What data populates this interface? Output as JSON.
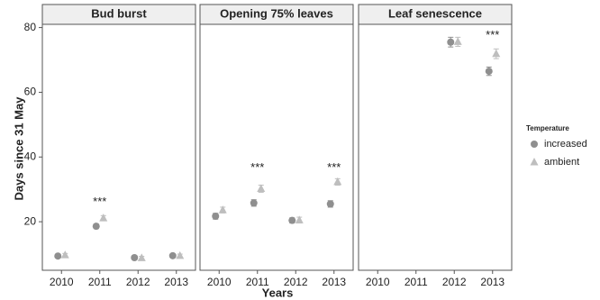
{
  "chart_data": {
    "type": "point",
    "y_label": "Days since 31 May",
    "x_label": "Years",
    "legend_title": "Temperature",
    "categories": [
      "2010",
      "2011",
      "2012",
      "2013"
    ],
    "ylim": [
      5,
      81
    ],
    "yticks": [
      20,
      40,
      60,
      80
    ],
    "grid": false,
    "series": [
      {
        "name": "increased",
        "color": "#8f8f8f",
        "marker": "circle"
      },
      {
        "name": "ambient",
        "color": "#bebebe",
        "marker": "triangle"
      }
    ],
    "panels": [
      {
        "title": "Bud burst",
        "values": [
          [
            9.4,
            18.6,
            8.9,
            9.5
          ],
          [
            9.7,
            21.1,
            8.8,
            9.5
          ]
        ],
        "errors": [
          [
            0.5,
            0.7,
            0.5,
            0.5
          ],
          [
            0.5,
            0.8,
            0.5,
            0.5
          ]
        ],
        "annotations": [
          {
            "text": "***",
            "x": "2011",
            "y": 26
          }
        ]
      },
      {
        "title": "Opening 75% leaves",
        "values": [
          [
            21.7,
            25.8,
            20.4,
            25.5
          ],
          [
            23.6,
            30.2,
            20.5,
            32.3
          ]
        ],
        "errors": [
          [
            0.9,
            1.0,
            0.8,
            1.0
          ],
          [
            0.9,
            1.1,
            0.9,
            1.0
          ]
        ],
        "annotations": [
          {
            "text": "***",
            "x": "2011",
            "y": 36.6
          },
          {
            "text": "***",
            "x": "2013",
            "y": 36.6
          }
        ]
      },
      {
        "title": "Leaf senescence",
        "values": [
          [
            null,
            null,
            75.5,
            66.5
          ],
          [
            null,
            null,
            75.6,
            71.9
          ]
        ],
        "errors": [
          [
            null,
            null,
            1.5,
            1.3
          ],
          [
            null,
            null,
            1.4,
            1.5
          ]
        ],
        "annotations": [
          {
            "text": "***",
            "x": "2013",
            "y": 77.5
          }
        ]
      }
    ]
  }
}
